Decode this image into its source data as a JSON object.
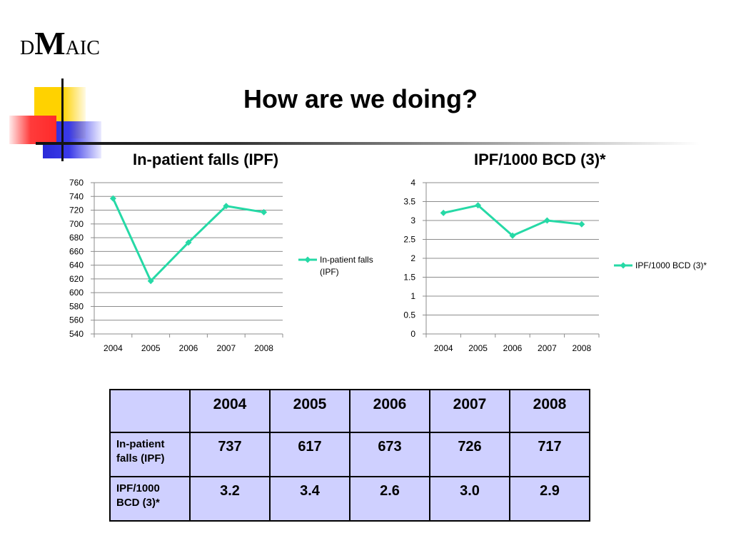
{
  "logo": {
    "left": "D",
    "big": "M",
    "right": "AIC"
  },
  "slide_title": "How are we doing?",
  "chart_data": [
    {
      "type": "line",
      "title": "In-patient falls (IPF)",
      "categories": [
        "2004",
        "2005",
        "2006",
        "2007",
        "2008"
      ],
      "series": [
        {
          "name": "In-patient falls (IPF)",
          "values": [
            737,
            617,
            673,
            726,
            717
          ]
        }
      ],
      "legend_lines": [
        "In-patient falls",
        "(IPF)"
      ],
      "ylim": [
        540,
        760
      ],
      "yticks": [
        540,
        560,
        580,
        600,
        620,
        640,
        660,
        680,
        700,
        720,
        740,
        760
      ],
      "grid": true,
      "legend": "right",
      "color": "#26d9a6"
    },
    {
      "type": "line",
      "title": "IPF/1000 BCD (3)*",
      "categories": [
        "2004",
        "2005",
        "2006",
        "2007",
        "2008"
      ],
      "series": [
        {
          "name": "IPF/1000 BCD (3)*",
          "values": [
            3.2,
            3.4,
            2.6,
            3.0,
            2.9
          ]
        }
      ],
      "legend_lines": [
        "IPF/1000 BCD (3)*"
      ],
      "ylim": [
        0,
        4
      ],
      "yticks": [
        0,
        0.5,
        1,
        1.5,
        2,
        2.5,
        3,
        3.5,
        4
      ],
      "grid": true,
      "legend": "right",
      "color": "#26d9a6"
    }
  ],
  "table": {
    "columns": [
      "2004",
      "2005",
      "2006",
      "2007",
      "2008"
    ],
    "rows": [
      {
        "label": "In-patient falls (IPF)",
        "values": [
          "737",
          "617",
          "673",
          "726",
          "717"
        ]
      },
      {
        "label": "IPF/1000 BCD (3)*",
        "values": [
          "3.2",
          "3.4",
          "2.6",
          "3.0",
          "2.9"
        ]
      }
    ]
  }
}
